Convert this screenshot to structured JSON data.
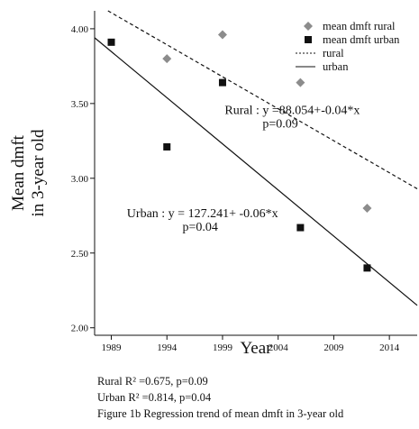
{
  "chart_data": {
    "type": "scatter",
    "xlabel": "Year",
    "ylabel_lines": [
      "Mean dmft",
      "in 3-year old"
    ],
    "xlim": [
      1987.5,
      2016.5
    ],
    "ylim": [
      1.95,
      4.12
    ],
    "xticks": [
      {
        "value": 1989,
        "label": "1989"
      },
      {
        "value": 1994,
        "label": "1994"
      },
      {
        "value": 1999,
        "label": "1999"
      },
      {
        "value": 2004,
        "label": "2004"
      },
      {
        "value": 2009,
        "label": "2009"
      },
      {
        "value": 2014,
        "label": "2014"
      }
    ],
    "yticks": [
      {
        "value": 2.0,
        "label": "2.00"
      },
      {
        "value": 2.5,
        "label": "2.50"
      },
      {
        "value": 3.0,
        "label": "3.00"
      },
      {
        "value": 3.5,
        "label": "3.50"
      },
      {
        "value": 4.0,
        "label": "4.00"
      }
    ],
    "series": [
      {
        "name": "mean dmft rural",
        "marker": "diamond",
        "color": "#8c8c8c",
        "points": [
          [
            1994,
            3.8
          ],
          [
            1999,
            3.96
          ],
          [
            2006,
            3.64
          ],
          [
            2012,
            2.8
          ]
        ]
      },
      {
        "name": "mean dmft urban",
        "marker": "square",
        "color": "#111111",
        "points": [
          [
            1989,
            3.91
          ],
          [
            1994,
            3.21
          ],
          [
            1999,
            3.64
          ],
          [
            2006,
            2.67
          ],
          [
            2012,
            2.4
          ]
        ]
      }
    ],
    "lines": [
      {
        "name": "rural",
        "style": "dashed",
        "color": "#111111",
        "x": [
          1988.7,
          2016.5
        ],
        "y": [
          4.12,
          2.93
        ]
      },
      {
        "name": "urban",
        "style": "solid",
        "color": "#111111",
        "x": [
          1987.5,
          2016.5
        ],
        "y": [
          3.94,
          2.15
        ]
      }
    ],
    "legend_position": "top-right",
    "annotations": [
      {
        "text": "Rural : y =88.054+-0.04*x",
        "x": 1999.2,
        "y": 3.43
      },
      {
        "text": "p=0.09",
        "x": 2002.6,
        "y": 3.34
      },
      {
        "text": "Urban : y = 127.241+ -0.06*x",
        "x": 1990.4,
        "y": 2.74
      },
      {
        "text": "p=0.04",
        "x": 1995.4,
        "y": 2.65
      }
    ]
  },
  "caption": {
    "rural_r2": "Rural R² =0.675, p=0.09",
    "urban_r2": "Urban R² =0.814, p=0.04",
    "title": "Figure 1b Regression trend of mean dmft in 3-year old"
  }
}
